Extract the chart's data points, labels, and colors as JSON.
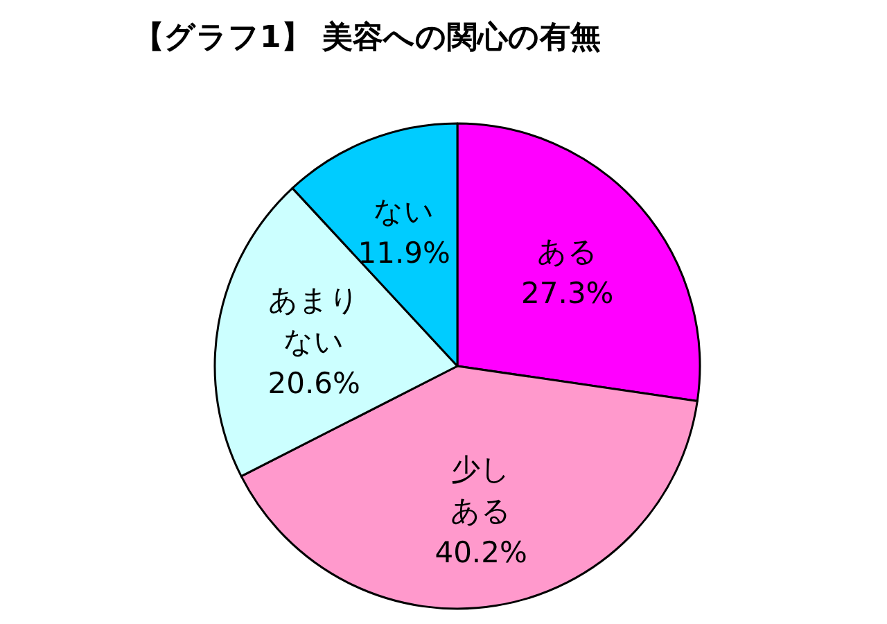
{
  "chart_data": {
    "type": "pie",
    "title": "【グラフ1】 美容への関心の有無",
    "categories": [
      "ある",
      "少しある",
      "あまりない",
      "ない"
    ],
    "values": [
      27.3,
      40.2,
      20.6,
      11.9
    ],
    "colors": [
      "#ff00ff",
      "#ff99cc",
      "#ccffff",
      "#00ccff"
    ],
    "value_labels": [
      "27.3%",
      "40.2%",
      "20.6%",
      "11.9%"
    ]
  }
}
